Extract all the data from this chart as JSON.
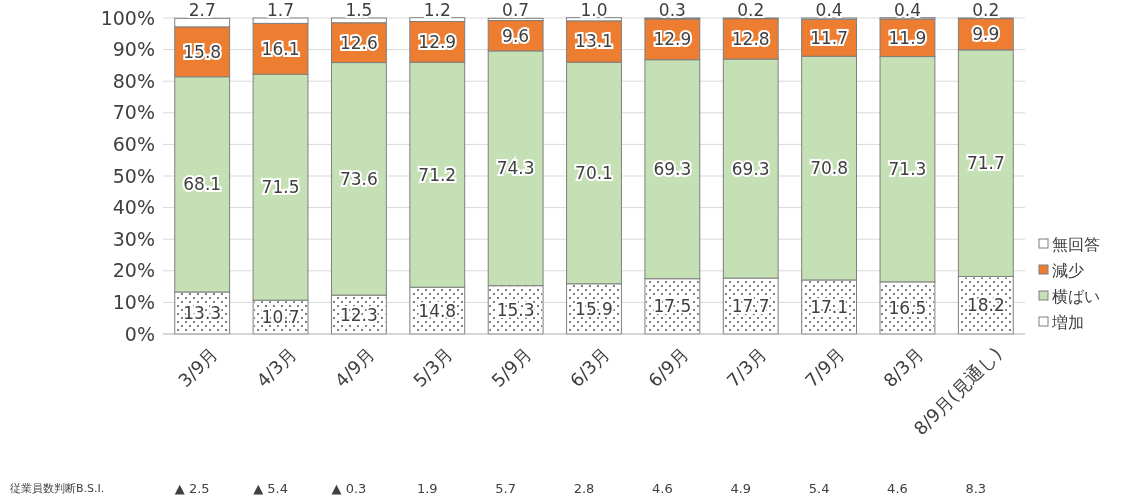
{
  "chart_data": {
    "type": "bar",
    "stacked": true,
    "categories": [
      "3/9月",
      "4/3月",
      "4/9月",
      "5/3月",
      "5/9月",
      "6/3月",
      "6/9月",
      "7/3月",
      "7/9月",
      "8/3月",
      "8/9月(見通し)"
    ],
    "series": [
      {
        "name": "増加",
        "color": "#ffffff",
        "values": [
          13.3,
          10.7,
          12.3,
          14.8,
          15.3,
          15.9,
          17.5,
          17.7,
          17.1,
          16.5,
          18.2
        ]
      },
      {
        "name": "横ばい",
        "color": "#c5e0b4",
        "values": [
          68.1,
          71.5,
          73.6,
          71.2,
          74.3,
          70.1,
          69.3,
          69.3,
          70.8,
          71.3,
          71.7
        ]
      },
      {
        "name": "減少",
        "color": "#ed7d31",
        "values": [
          15.8,
          16.1,
          12.6,
          12.9,
          9.6,
          13.1,
          12.9,
          12.8,
          11.7,
          11.9,
          9.9
        ]
      },
      {
        "name": "無回答",
        "color": "#ffffff",
        "values": [
          2.7,
          1.7,
          1.5,
          1.2,
          0.7,
          1.0,
          0.3,
          0.2,
          0.4,
          0.4,
          0.2
        ],
        "value_labels": [
          "2.7",
          "1.7",
          "1.5",
          "1.2",
          "0.7",
          "1.0",
          "0.3",
          "0.2",
          "0.4",
          "0.4",
          "0.2"
        ]
      }
    ],
    "ylim": [
      0,
      100
    ],
    "yticks": [
      {
        "value": 0,
        "label": "0%"
      },
      {
        "value": 10,
        "label": "10%"
      },
      {
        "value": 20,
        "label": "20%"
      },
      {
        "value": 30,
        "label": "30%"
      },
      {
        "value": 40,
        "label": "40%"
      },
      {
        "value": 50,
        "label": "50%"
      },
      {
        "value": 60,
        "label": "60%"
      },
      {
        "value": 70,
        "label": "70%"
      },
      {
        "value": 80,
        "label": "80%"
      },
      {
        "value": 90,
        "label": "90%"
      },
      {
        "value": 100,
        "label": "100%"
      }
    ],
    "grid": "y",
    "legend": "right",
    "data_labels": true,
    "annotations": [
      "従業員数判断B.S.I.",
      "▲ 2.5",
      "▲ 5.4",
      "▲ 0.3",
      "1.9",
      "5.7",
      "2.8",
      "4.6",
      "4.9",
      "5.4",
      "4.6",
      "8.3"
    ]
  }
}
